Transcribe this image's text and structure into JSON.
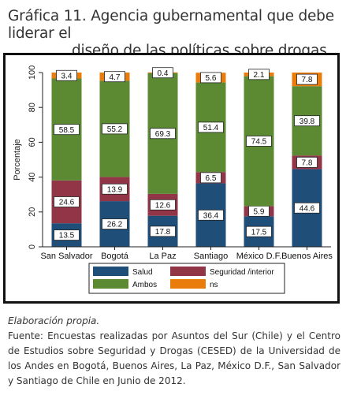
{
  "header": {
    "title_line1": "Gráfica 11.  Agencia gubernamental que debe liderar el",
    "title_line2": "diseño de las políticas sobre drogas"
  },
  "chart_data": {
    "type": "bar",
    "stacked": true,
    "categories": [
      "San Salvador",
      "Bogotá",
      "La Paz",
      "Santiago",
      "México D.F.",
      "Buenos Aires"
    ],
    "series": [
      {
        "name": "Salud",
        "color": "#1f4e79",
        "values": [
          13.5,
          26.2,
          17.8,
          36.4,
          17.5,
          44.6
        ]
      },
      {
        "name": "Seguridad /interior",
        "color": "#913547",
        "values": [
          24.6,
          13.9,
          12.6,
          6.5,
          5.9,
          7.8
        ]
      },
      {
        "name": "Ambos",
        "color": "#5b8a33",
        "values": [
          58.5,
          55.2,
          69.3,
          51.4,
          74.5,
          39.8
        ]
      },
      {
        "name": "ns",
        "color": "#ea7c0c",
        "values": [
          3.4,
          4.7,
          0.4,
          5.6,
          2.1,
          7.8
        ]
      }
    ],
    "labels": {
      "Salud": [
        "13.5",
        "26.2",
        "17.8",
        "36.4",
        "17.5",
        "44.6"
      ],
      "Seguridad /interior": [
        "24.6",
        "13.9",
        "12.6",
        "6.5",
        "5.9",
        "7.8"
      ],
      "Ambos": [
        "58.5",
        "55.2",
        "69.3",
        "51.4",
        "74.5",
        "39.8"
      ],
      "ns": [
        "3.4",
        "4.7",
        "0.4",
        "5.6",
        "2.1",
        "7.8"
      ]
    },
    "ylabel": "Porcentaje",
    "xlabel": "",
    "ylim": [
      0,
      100
    ],
    "yticks": [
      "0",
      "20",
      "40",
      "60",
      "80",
      "100"
    ],
    "legend_position": "bottom",
    "grid": false
  },
  "caption": {
    "elaboration": "Elaboración propia.",
    "source": "Fuente: Encuestas realizadas por Asuntos del Sur (Chile) y el Centro de Estudios sobre Seguridad y Drogas (CESED) de la Universidad de los Andes en Bogotá, Buenos Aires, La Paz,  México D.F., San Salvador y Santiago de Chile en Junio de 2012."
  }
}
